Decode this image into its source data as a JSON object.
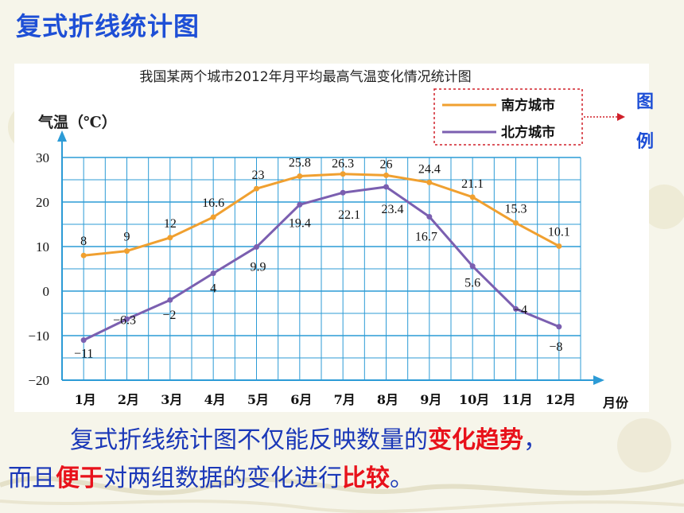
{
  "slide_title": "复式折线统计图",
  "legend_word_1": "图",
  "legend_word_2": "例",
  "caption": {
    "line1_a": "复式折线统计图不仅能反映数量的",
    "line1_hl": "变化趋势",
    "line1_end": "，",
    "line2_a": "而且",
    "line2_hl1": "便于",
    "line2_b": "对两组数据的变化进行",
    "line2_hl2": "比较",
    "line2_end": "。"
  },
  "colors": {
    "south": "#f0a030",
    "north": "#7b5fb0",
    "grid": "#2c9bd6",
    "accent": "#1e4fd6",
    "highlight": "#e8121b"
  },
  "chart_data": {
    "type": "line",
    "title": "我国某两个城市2012年月平均最高气温变化情况统计图",
    "ylabel": "气温（℃）",
    "xlabel": "月份",
    "categories": [
      "1月",
      "2月",
      "3月",
      "4月",
      "5月",
      "6月",
      "7月",
      "8月",
      "9月",
      "10月",
      "11月",
      "12月"
    ],
    "yticks": [
      30,
      20,
      10,
      0,
      -10,
      -20
    ],
    "ylim": [
      -20,
      30
    ],
    "grid": true,
    "legend_position": "top-right",
    "series": [
      {
        "name": "南方城市",
        "values": [
          8,
          9,
          12,
          16.6,
          23,
          25.8,
          26.3,
          26,
          24.4,
          21.1,
          15.3,
          10.1
        ],
        "labels": [
          "8",
          "9",
          "12",
          "16.6",
          "23",
          "25.8",
          "26.3",
          "26",
          "24.4",
          "21.1",
          "15.3",
          "10.1"
        ]
      },
      {
        "name": "北方城市",
        "values": [
          -11,
          -6.3,
          -2,
          4,
          9.9,
          19.4,
          22.1,
          23.4,
          16.7,
          5.6,
          -4,
          -8
        ],
        "labels": [
          "−11",
          "−6.3",
          "−2",
          "4",
          "9.9",
          "19.4",
          "22.1",
          "23.4",
          "16.7",
          "5.6",
          "−4",
          "−8"
        ]
      }
    ]
  }
}
